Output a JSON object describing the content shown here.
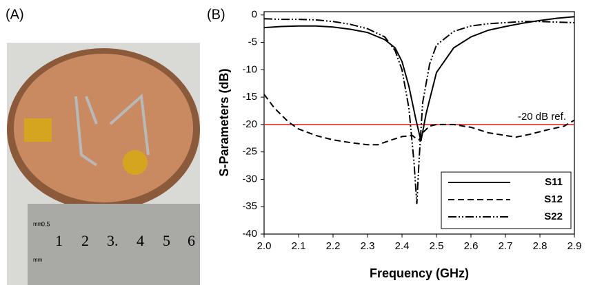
{
  "panel_labels": [
    "(A)",
    "(B)"
  ],
  "photo": {
    "ruler_labels": [
      "0.5",
      "mm",
      "mm",
      "1",
      "2",
      "3.",
      "4",
      "5",
      "6"
    ]
  },
  "chart_data": {
    "type": "line",
    "xlabel": "Frequency (GHz)",
    "ylabel": "S-Parameters (dB)",
    "xlim": [
      2.0,
      2.9
    ],
    "xticks": [
      {
        "value": 2,
        "label": "2.0"
      },
      2.1,
      2.2,
      2.3,
      2.4,
      2.5,
      2.6,
      2.7,
      2.8,
      2.9
    ],
    "ylim": [
      -40,
      0.6
    ],
    "yticks": [
      0,
      -5,
      -10,
      -15,
      -20,
      -25,
      -30,
      -35,
      -40
    ],
    "ref_line": {
      "value": -20,
      "label": "-20 dB ref.",
      "color": "#e8231f"
    },
    "legend": "lower right",
    "series": [
      {
        "name": "S11",
        "color": "#000000",
        "dash": "solid",
        "x": [
          2.0,
          2.05,
          2.1,
          2.15,
          2.2,
          2.25,
          2.3,
          2.35,
          2.38,
          2.4,
          2.42,
          2.44,
          2.455,
          2.47,
          2.5,
          2.55,
          2.6,
          2.65,
          2.7,
          2.75,
          2.8,
          2.85,
          2.9
        ],
        "values": [
          -2.3,
          -2.1,
          -2.0,
          -2.0,
          -2.2,
          -2.6,
          -3.2,
          -4.5,
          -6,
          -8.5,
          -13,
          -19,
          -23,
          -18,
          -10.5,
          -6,
          -4,
          -2.8,
          -2.1,
          -1.5,
          -1.0,
          -0.6,
          -0.3
        ]
      },
      {
        "name": "S12",
        "color": "#000000",
        "dash": "dashed",
        "x": [
          2.0,
          2.03,
          2.07,
          2.1,
          2.15,
          2.2,
          2.25,
          2.3,
          2.33,
          2.37,
          2.4,
          2.43,
          2.44,
          2.45,
          2.46,
          2.48,
          2.5,
          2.55,
          2.6,
          2.65,
          2.7,
          2.73,
          2.77,
          2.82,
          2.87,
          2.9
        ],
        "values": [
          -14.5,
          -17,
          -19.5,
          -20.8,
          -22.0,
          -22.8,
          -23.3,
          -23.7,
          -23.7,
          -22.8,
          -22.2,
          -22,
          -22.5,
          -22.8,
          -21.5,
          -20.3,
          -20,
          -20,
          -20.5,
          -21.5,
          -22,
          -22.3,
          -21.8,
          -21,
          -20.3,
          -19.2
        ]
      },
      {
        "name": "S22",
        "color": "#000000",
        "dash": "dashdotdot",
        "x": [
          2.0,
          2.05,
          2.1,
          2.15,
          2.2,
          2.25,
          2.3,
          2.35,
          2.38,
          2.4,
          2.42,
          2.435,
          2.443,
          2.45,
          2.46,
          2.48,
          2.5,
          2.55,
          2.6,
          2.65,
          2.7,
          2.75,
          2.8,
          2.85,
          2.9
        ],
        "values": [
          -0.7,
          -0.8,
          -0.8,
          -0.9,
          -1.2,
          -1.7,
          -2.5,
          -4,
          -6.5,
          -10,
          -17,
          -27,
          -34.5,
          -26,
          -16,
          -9,
          -5.5,
          -3,
          -2,
          -1.6,
          -1.4,
          -1.2,
          -1.2,
          -1.3,
          -1.4
        ]
      }
    ]
  }
}
